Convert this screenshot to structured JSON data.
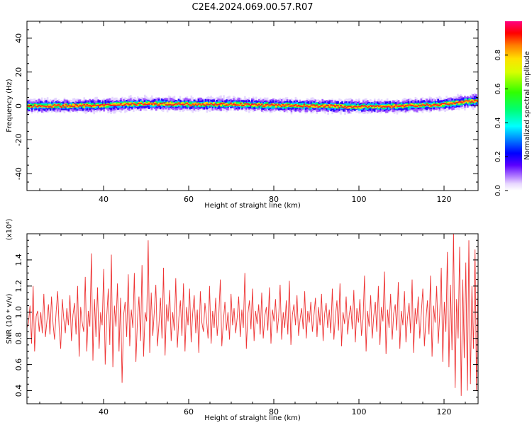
{
  "title": "C2E4.2024.069.00.57.R07",
  "chart_data": [
    {
      "type": "heatmap",
      "xlabel": "Height of straight line (km)",
      "ylabel": "Frequency (Hz)",
      "xlim": [
        22,
        128
      ],
      "ylim": [
        -50,
        50
      ],
      "x_ticks": [
        40,
        60,
        80,
        100,
        120
      ],
      "y_ticks": [
        -40,
        -20,
        0,
        20,
        40
      ],
      "colorbar": {
        "label": "Normalized spectral amplitude",
        "range": [
          0,
          1
        ],
        "ticks": [
          "0.0",
          "0.2",
          "0.4",
          "0.6",
          "0.8"
        ]
      },
      "peak_frequency_track": [
        {
          "x": 22,
          "y": 0.0
        },
        {
          "x": 30,
          "y": 0.0
        },
        {
          "x": 40,
          "y": 0.3
        },
        {
          "x": 45,
          "y": 1.0
        },
        {
          "x": 50,
          "y": 1.2
        },
        {
          "x": 60,
          "y": 1.0
        },
        {
          "x": 70,
          "y": 1.0
        },
        {
          "x": 80,
          "y": 0.3
        },
        {
          "x": 90,
          "y": 0.0
        },
        {
          "x": 100,
          "y": -0.5
        },
        {
          "x": 110,
          "y": 0.0
        },
        {
          "x": 115,
          "y": 0.3
        },
        {
          "x": 120,
          "y": 1.0
        },
        {
          "x": 125,
          "y": 2.5
        },
        {
          "x": 128,
          "y": 3.0
        }
      ],
      "band_half_width_hz": 3
    },
    {
      "type": "line",
      "xlabel": "Height of straight line (km)",
      "ylabel": "SNR (10 * v/v)",
      "y_multiplier": "(x10⁴)",
      "xlim": [
        22,
        128
      ],
      "ylim": [
        0.3,
        1.6
      ],
      "x_ticks": [
        40,
        60,
        80,
        100,
        120
      ],
      "y_ticks": [
        "0.4",
        "0.6",
        "0.8",
        "1.0",
        "1.2",
        "1.4"
      ],
      "series": [
        {
          "color": "#ee3333",
          "x_range": [
            22,
            128
          ],
          "y": [
            0.88,
            0.92,
            1.05,
            0.76,
            1.2,
            0.7,
            0.97,
            1.01,
            0.85,
            1.0,
            0.84,
            1.14,
            0.81,
            0.93,
            1.06,
            0.83,
            1.12,
            0.91,
            0.79,
            1.0,
            1.16,
            0.88,
            0.72,
            1.1,
            0.95,
            0.84,
            1.03,
            0.9,
            1.13,
            0.78,
            0.98,
            1.07,
            0.83,
            1.2,
            0.66,
            1.04,
            0.92,
            0.85,
            1.27,
            0.7,
            1.01,
            0.89,
            1.45,
            0.63,
            1.1,
            0.81,
            1.19,
            0.72,
            1.0,
            0.9,
            1.33,
            0.6,
            0.97,
            1.18,
            0.75,
            1.44,
            0.58,
            1.05,
            0.89,
            1.22,
            0.7,
            1.11,
            0.46,
            0.98,
            1.08,
            0.81,
            1.29,
            0.74,
            1.02,
            0.88,
            1.3,
            0.62,
            0.94,
            1.12,
            0.78,
            1.36,
            0.66,
            1.0,
            0.93,
            1.55,
            0.69,
            1.15,
            0.82,
            1.01,
            1.21,
            0.74,
            0.9,
            1.11,
            0.8,
            1.34,
            0.67,
            1.06,
            0.93,
            1.17,
            0.78,
            1.0,
            0.86,
            1.26,
            0.73,
            0.96,
            1.09,
            0.82,
            1.22,
            0.7,
            1.04,
            0.9,
            1.18,
            0.77,
            0.99,
            1.13,
            0.84,
            1.02,
            0.69,
            1.16,
            0.92,
            0.85,
            1.07,
            0.95,
            0.8,
            1.2,
            0.76,
            1.01,
            0.88,
            1.11,
            0.82,
            0.97,
            1.25,
            0.74,
            0.93,
            1.08,
            0.86,
            1.0,
            0.79,
            1.14,
            0.9,
            1.03,
            0.84,
            0.96,
            1.12,
            0.81,
            1.02,
            0.88,
            1.3,
            0.72,
            0.99,
            1.09,
            0.87,
            1.18,
            0.78,
            1.01,
            0.91,
            1.06,
            0.83,
            1.15,
            0.8,
            0.97,
            1.04,
            0.86,
            1.19,
            0.76,
            1.02,
            0.93,
            1.1,
            0.84,
            0.96,
            1.21,
            0.79,
            1.0,
            0.88,
            1.09,
            0.83,
            1.24,
            0.75,
            0.98,
            1.06,
            0.9,
            1.13,
            0.82,
            0.95,
            1.03,
            0.87,
            1.16,
            0.8,
            1.01,
            0.92,
            1.08,
            0.85,
            0.97,
            1.11,
            0.81,
            1.04,
            0.9,
            1.14,
            0.78,
            0.99,
            1.07,
            0.88,
            1.02,
            0.84,
            1.18,
            0.79,
            0.96,
            1.09,
            0.86,
            1.22,
            0.74,
            1.0,
            0.91,
            1.12,
            0.83,
            0.98,
            1.05,
            0.87,
            1.17,
            0.77,
            1.03,
            0.92,
            1.1,
            0.82,
            0.95,
            1.28,
            0.7,
            1.01,
            0.89,
            1.13,
            0.8,
            0.97,
            1.08,
            0.85,
            1.2,
            0.75,
            1.04,
            0.93,
            1.31,
            0.68,
            1.02,
            0.88,
            1.14,
            0.79,
            0.99,
            1.06,
            0.86,
            1.23,
            0.72,
            1.01,
            0.9,
            1.16,
            0.77,
            0.96,
            1.07,
            0.84,
            1.25,
            0.69,
            1.03,
            0.91,
            1.12,
            0.8,
            1.0,
            1.18,
            0.74,
            0.94,
            1.09,
            0.83,
            1.28,
            0.66,
            1.05,
            0.92,
            1.2,
            0.76,
            0.98,
            1.34,
            0.62,
            1.08,
            0.85,
            1.46,
            0.58,
            1.21,
            0.71,
            1.62,
            0.42,
            1.1,
            0.8,
            1.5,
            0.36,
            1.25,
            0.65,
            1.38,
            0.4,
            1.55,
            0.45,
            1.2,
            0.72,
            1.48,
            0.4,
            1.3
          ]
        }
      ]
    }
  ]
}
